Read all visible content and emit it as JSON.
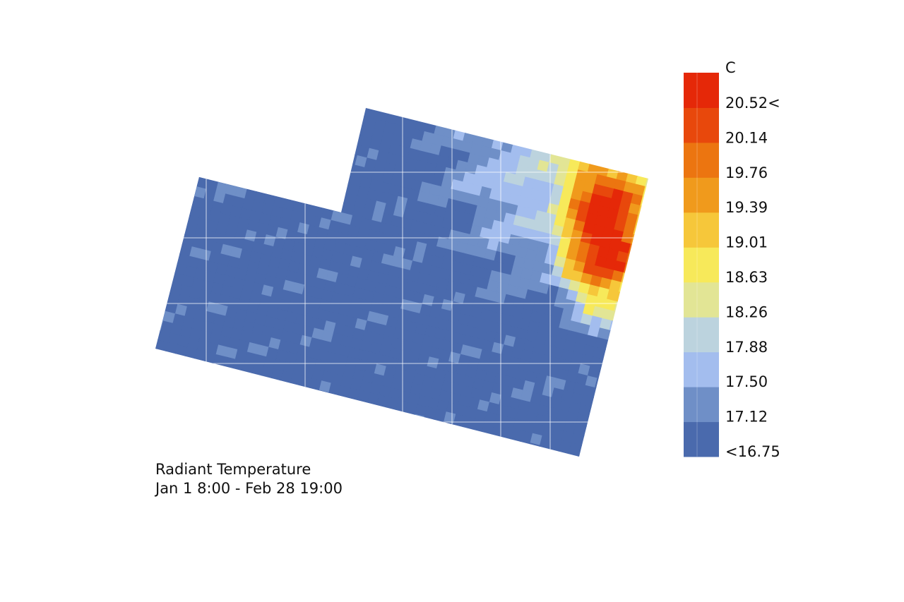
{
  "chart_data": {
    "type": "heatmap",
    "title": "Radiant Temperature",
    "subtitle": "Jan 1 8:00 - Feb 28 19:00",
    "unit": "C",
    "legend": {
      "placement": "right",
      "unit_label": "C",
      "tick_labels": [
        "20.52<",
        "20.14",
        "19.76",
        "19.39",
        "19.01",
        "18.63",
        "18.26",
        "17.88",
        "17.50",
        "17.12",
        "<16.75"
      ],
      "min": 16.75,
      "max": 20.52,
      "color_stops": [
        "#4a6aad",
        "#6f8fc7",
        "#a3bdee",
        "#bcd3de",
        "#e2e595",
        "#f7e95a",
        "#f6c73a",
        "#f09a1c",
        "#ec7510",
        "#e8480c",
        "#e52808"
      ]
    },
    "grid": true,
    "value_range": [
      16.75,
      20.52
    ],
    "hotspot": {
      "location": "north-east edge",
      "peak_value": 20.52
    }
  }
}
